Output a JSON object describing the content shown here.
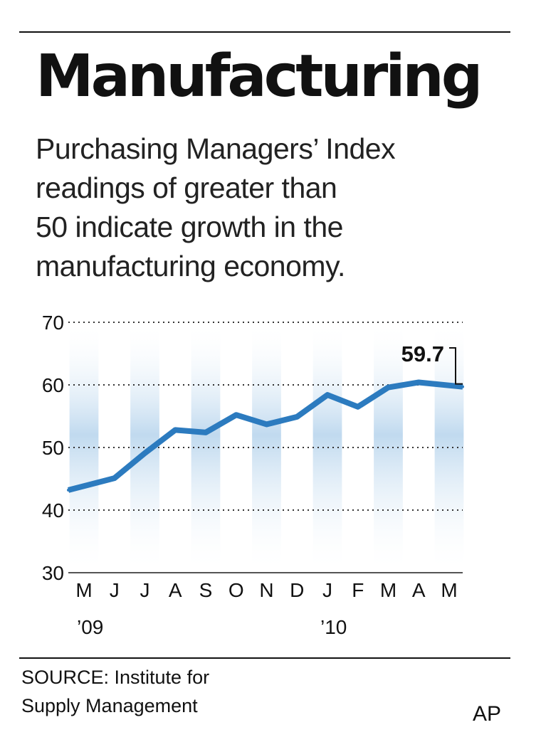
{
  "header": {
    "title": "Manufacturing",
    "subtitle_lines": [
      "Purchasing Managers’ Index",
      "readings of greater than",
      "50 indicate growth in the",
      "manufacturing economy."
    ]
  },
  "chart_data": {
    "type": "line",
    "categories": [
      "M",
      "J",
      "J",
      "A",
      "S",
      "O",
      "N",
      "D",
      "J",
      "F",
      "M",
      "A",
      "M"
    ],
    "year_labels": [
      {
        "category_index": 0,
        "label": "’09"
      },
      {
        "category_index": 8,
        "label": "’10"
      }
    ],
    "series": [
      {
        "values": [
          43.2,
          45.1,
          49.1,
          52.8,
          52.4,
          55.2,
          53.7,
          54.9,
          58.4,
          56.5,
          59.6,
          60.4,
          59.7
        ]
      }
    ],
    "ylim": [
      30,
      70
    ],
    "yticks": [
      30,
      40,
      50,
      60,
      70
    ],
    "grid": "dotted horizontal",
    "annotation": {
      "label": "59.7",
      "category_index": 12
    },
    "colors": {
      "line": "#2c7bbf",
      "band": "#b5d3ec",
      "axis": "#555555",
      "text": "#111111"
    }
  },
  "footer": {
    "source_lines": [
      "SOURCE: Institute for",
      "Supply Management"
    ],
    "credit": "AP"
  }
}
